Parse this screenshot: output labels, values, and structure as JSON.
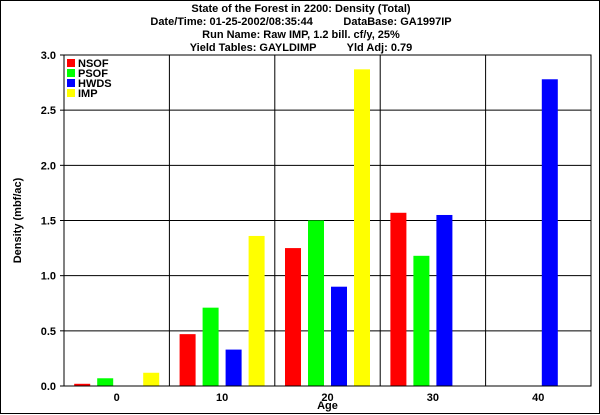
{
  "header": {
    "title": "State of the Forest in 2200: Density (Total)",
    "datetime_line": "Date/Time: 01-25-2002/08:35:44          DataBase: GA1997IP",
    "run_line": "Run Name: Raw IMP, 1.2 bill. cf/y, 25%",
    "yield_line": "Yield Tables: GAYLDIMP          Yld Adj: 0.79"
  },
  "chart_data": {
    "type": "bar",
    "title": "State of the Forest in 2200: Density (Total)",
    "xlabel": "Age",
    "ylabel": "Density (mbf/ac)",
    "categories": [
      "0",
      "10",
      "20",
      "30",
      "40"
    ],
    "ylim": [
      0.0,
      3.0
    ],
    "yticks": [
      "0.0",
      "0.5",
      "1.0",
      "1.5",
      "2.0",
      "2.5",
      "3.0"
    ],
    "grid": true,
    "legend_position": "top-left",
    "series": [
      {
        "name": "NSOF",
        "color": "#ff0000",
        "values": [
          0.02,
          0.47,
          1.25,
          1.57,
          0.0
        ]
      },
      {
        "name": "PSOF",
        "color": "#00ff00",
        "values": [
          0.07,
          0.71,
          1.5,
          1.18,
          0.0
        ]
      },
      {
        "name": "HWDS",
        "color": "#0000ff",
        "values": [
          0.0,
          0.33,
          0.9,
          1.55,
          2.78
        ]
      },
      {
        "name": "IMP",
        "color": "#ffff00",
        "values": [
          0.12,
          1.36,
          2.87,
          0.0,
          0.0
        ]
      }
    ]
  }
}
